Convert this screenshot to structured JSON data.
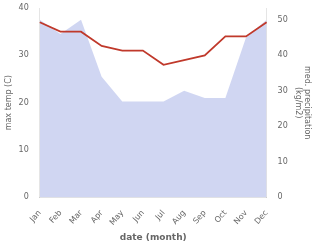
{
  "chart_data": {
    "type": "line",
    "categories": [
      "Jan",
      "Feb",
      "Mar",
      "Apr",
      "May",
      "Jun",
      "Jul",
      "Aug",
      "Sep",
      "Oct",
      "Nov",
      "Dec"
    ],
    "series": [
      {
        "type": "area",
        "color": "#aab4e8",
        "axis": "y2",
        "values": [
          50,
          46,
          50,
          34,
          27,
          27,
          27,
          30,
          28,
          28,
          45,
          50
        ]
      },
      {
        "type": "line",
        "color": "#c0392b",
        "values": [
          37,
          35,
          35,
          32,
          31,
          31,
          28,
          29,
          30,
          34,
          34,
          37
        ]
      }
    ],
    "xlabel": "date (month)",
    "ylabel": "max temp (C)",
    "y2label": "med. precipitation\n(kg/m2)",
    "ylim": [
      0,
      40
    ],
    "yticks": [
      0,
      10,
      20,
      30,
      40
    ],
    "y2lim": [
      0,
      53.33
    ],
    "y2ticks": [
      0,
      10,
      20,
      30,
      40,
      50
    ],
    "grid": false
  }
}
